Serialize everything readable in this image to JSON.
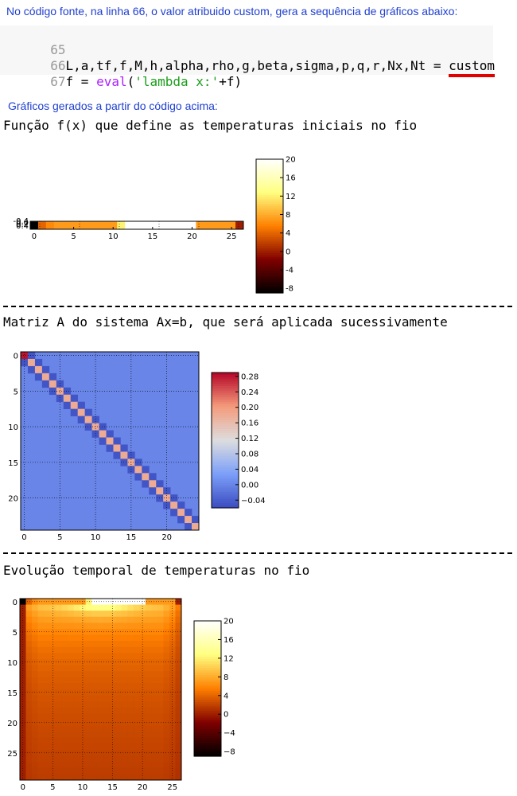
{
  "intro_text": "No código fonte, na linha 66, o valor atribuido custom, gera a sequência de gráficos abaixo:",
  "code": {
    "lines": [
      {
        "num": "65",
        "text": ""
      },
      {
        "num": "66",
        "text": "L,a,tf,f,M,h,alpha,rho,g,beta,sigma,p,q,r,Nx,Nt = ",
        "highlight": "custom"
      },
      {
        "num": "67",
        "prefix": "f = ",
        "func": "eval",
        "open": "(",
        "str": "'lambda x:'",
        "suffix": "+f)"
      }
    ]
  },
  "subheading": "Gráficos gerados a partir do código acima:",
  "section1_title": "Função f(x) que define as temperaturas iniciais no fio",
  "section2_title": "Matriz A do sistema Ax=b, que será aplicada sucessivamente",
  "section3_title": "Evolução temporal de temperaturas no fio",
  "colors": {
    "text_blue": "#1f3fd0",
    "underline_red": "#e00000",
    "matrix_bg": "#6f93f0",
    "matrix_diag": "#ea8c6e",
    "matrix_off": "#4a5ad0",
    "matrix_corner": "#c8312e"
  },
  "chart_data": [
    {
      "type": "heatmap",
      "name_ref": "initial-temperature-strip",
      "x_ticks": [
        0,
        5,
        10,
        15,
        20,
        25
      ],
      "xlim": [
        -0.5,
        26.5
      ],
      "values": [
        -9,
        4,
        6,
        7,
        7,
        7,
        7,
        7,
        7,
        7,
        7,
        12,
        20,
        20,
        20,
        20,
        20,
        20,
        20,
        20,
        20,
        7,
        7,
        7,
        7,
        7,
        0
      ],
      "colorbar": {
        "min": -9,
        "max": 20,
        "ticks": [
          20,
          16,
          12,
          8,
          4,
          0,
          -4,
          -8
        ],
        "colormap": "afmhot"
      },
      "y_tick_labels": [
        "-0.4",
        "0.0",
        "0.2",
        "0.4"
      ]
    },
    {
      "type": "heatmap",
      "name_ref": "matrix-A",
      "size": 25,
      "x_ticks": [
        0,
        5,
        10,
        15,
        20
      ],
      "y_ticks": [
        0,
        5,
        10,
        15,
        20
      ],
      "diagonal_value": 0.18,
      "offdiagonal_value": -0.05,
      "background_value": 0.0,
      "corner_value": 0.28,
      "colorbar": {
        "min": -0.06,
        "max": 0.29,
        "ticks": [
          0.28,
          0.24,
          0.2,
          0.16,
          0.12,
          0.08,
          0.04,
          0.0,
          -0.04
        ],
        "tick_labels": [
          "0.28",
          "0.24",
          "0.20",
          "0.16",
          "0.12",
          "0.08",
          "0.04",
          "0.00",
          "−0.04"
        ],
        "colormap": "coolwarm"
      }
    },
    {
      "type": "heatmap",
      "name_ref": "temperature-evolution",
      "x_ticks": [
        0,
        5,
        10,
        15,
        20,
        25
      ],
      "y_ticks": [
        0,
        5,
        10,
        15,
        20,
        25
      ],
      "nx": 27,
      "nt": 30,
      "colorbar": {
        "min": -9,
        "max": 20,
        "ticks": [
          20,
          16,
          12,
          8,
          4,
          0,
          -4,
          -8
        ],
        "tick_labels": [
          "20",
          "16",
          "12",
          "8",
          "4",
          "0",
          "−4",
          "−8"
        ],
        "colormap": "afmhot"
      }
    }
  ]
}
